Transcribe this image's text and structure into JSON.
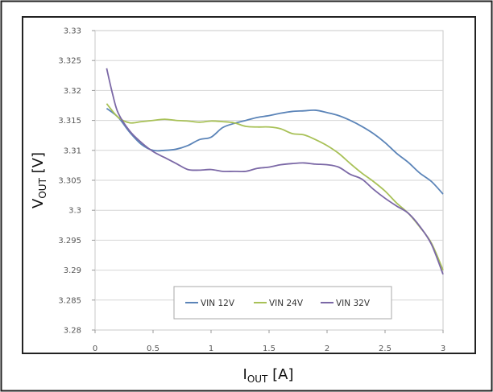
{
  "chart_data": {
    "type": "line",
    "title": "",
    "xlabel": {
      "main": "I",
      "sub": "OUT",
      "unit": " [A]"
    },
    "ylabel": {
      "main": "V",
      "sub": "OUT",
      "unit": " [V]"
    },
    "xlim": [
      0,
      3
    ],
    "ylim": [
      3.28,
      3.33
    ],
    "x_ticks": [
      0,
      0.5,
      1,
      1.5,
      2,
      2.5,
      3
    ],
    "x_tick_labels": [
      "0",
      "0.5",
      "1",
      "1.5",
      "2",
      "2.5",
      "3"
    ],
    "y_ticks": [
      3.28,
      3.285,
      3.29,
      3.295,
      3.3,
      3.305,
      3.31,
      3.315,
      3.32,
      3.325,
      3.33
    ],
    "y_tick_labels": [
      "3.28",
      "3.285",
      "3.29",
      "3.295",
      "3.3",
      "3.305",
      "3.31",
      "3.315",
      "3.32",
      "3.325",
      "3.33"
    ],
    "grid": true,
    "legend_position": "bottom-center, inside plot",
    "series": [
      {
        "name": "VIN 12V",
        "color": "#5b84b8",
        "x": [
          0.1,
          0.2,
          0.3,
          0.4,
          0.5,
          0.6,
          0.7,
          0.8,
          0.9,
          1.0,
          1.1,
          1.2,
          1.3,
          1.4,
          1.5,
          1.6,
          1.7,
          1.8,
          1.9,
          2.0,
          2.1,
          2.2,
          2.3,
          2.4,
          2.5,
          2.6,
          2.7,
          2.8,
          2.9,
          3.0
        ],
        "y": [
          3.317,
          3.3155,
          3.313,
          3.311,
          3.31,
          3.31,
          3.3102,
          3.3108,
          3.3118,
          3.3122,
          3.3138,
          3.3145,
          3.315,
          3.3155,
          3.3158,
          3.3162,
          3.3165,
          3.3166,
          3.3167,
          3.3163,
          3.3158,
          3.315,
          3.314,
          3.3128,
          3.3113,
          3.3095,
          3.308,
          3.3062,
          3.3048,
          3.3027
        ]
      },
      {
        "name": "VIN 24V",
        "color": "#a8c157",
        "x": [
          0.1,
          0.2,
          0.3,
          0.4,
          0.5,
          0.6,
          0.7,
          0.8,
          0.9,
          1.0,
          1.1,
          1.2,
          1.3,
          1.4,
          1.5,
          1.6,
          1.7,
          1.8,
          1.9,
          2.0,
          2.1,
          2.2,
          2.3,
          2.4,
          2.5,
          2.6,
          2.7,
          2.8,
          2.9,
          3.0
        ],
        "y": [
          3.3178,
          3.3155,
          3.3146,
          3.3148,
          3.315,
          3.3152,
          3.315,
          3.3149,
          3.3147,
          3.3149,
          3.3148,
          3.3146,
          3.314,
          3.3139,
          3.3139,
          3.3136,
          3.3128,
          3.3126,
          3.3118,
          3.3108,
          3.3095,
          3.3078,
          3.3062,
          3.3048,
          3.3032,
          3.3012,
          3.2995,
          3.2972,
          3.2945,
          3.29
        ]
      },
      {
        "name": "VIN 32V",
        "color": "#7b68a6",
        "x": [
          0.1,
          0.15,
          0.2,
          0.3,
          0.4,
          0.5,
          0.6,
          0.7,
          0.8,
          0.9,
          1.0,
          1.1,
          1.2,
          1.3,
          1.4,
          1.5,
          1.6,
          1.7,
          1.8,
          1.9,
          2.0,
          2.1,
          2.2,
          2.3,
          2.4,
          2.5,
          2.6,
          2.7,
          2.8,
          2.9,
          3.0
        ],
        "y": [
          3.3237,
          3.3195,
          3.3162,
          3.3132,
          3.3113,
          3.3098,
          3.3088,
          3.3078,
          3.3068,
          3.3067,
          3.3068,
          3.3065,
          3.3065,
          3.3065,
          3.307,
          3.3072,
          3.3076,
          3.3078,
          3.3079,
          3.3077,
          3.3076,
          3.3072,
          3.306,
          3.3052,
          3.3035,
          3.302,
          3.3007,
          3.2995,
          3.2973,
          3.2943,
          3.2893
        ]
      }
    ]
  }
}
